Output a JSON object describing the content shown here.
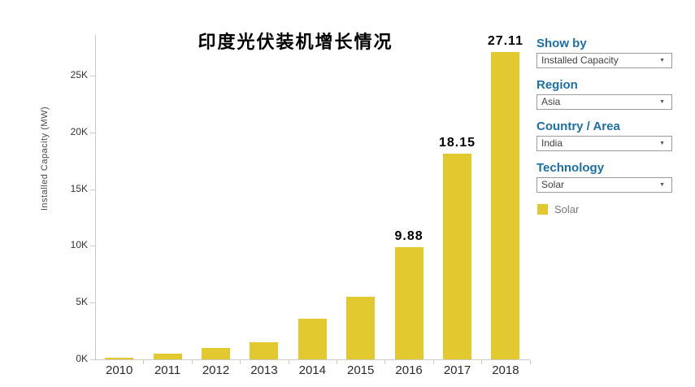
{
  "title": "印度光伏装机增长情况",
  "chart_data": {
    "type": "bar",
    "title": "印度光伏装机增长情况",
    "categories": [
      "2010",
      "2011",
      "2012",
      "2013",
      "2014",
      "2015",
      "2016",
      "2017",
      "2018"
    ],
    "values": [
      0.06,
      0.5,
      1.0,
      1.5,
      3.6,
      5.5,
      9.88,
      18.15,
      27.11
    ],
    "value_labels": [
      "",
      "",
      "",
      "",
      "",
      "",
      "9.88",
      "18.15",
      "27.11"
    ],
    "unit": "thousand MW (K)",
    "xlabel": "",
    "ylabel": "Installed Capacity (MW)",
    "ytick_labels": [
      "0K",
      "5K",
      "10K",
      "15K",
      "20K",
      "25K"
    ],
    "ytick_values": [
      0,
      5,
      10,
      15,
      20,
      25
    ],
    "ylim": [
      0,
      28.5
    ],
    "grid": false,
    "bar_color": "#e2c92f",
    "legend": {
      "position": "right",
      "entries": [
        {
          "label": "Solar",
          "color": "#e2c92f"
        }
      ]
    }
  },
  "filters": [
    {
      "label": "Show by",
      "value": "Installed Capacity"
    },
    {
      "label": "Region",
      "value": "Asia"
    },
    {
      "label": "Country / Area",
      "value": "India"
    },
    {
      "label": "Technology",
      "value": "Solar"
    }
  ],
  "legend": {
    "label": "Solar"
  },
  "icons": {
    "dropdown_caret": "▼"
  },
  "colors": {
    "bar": "#e2c92f",
    "filter_heading": "#1d6fa5",
    "axis_line": "#cbcbcb",
    "tick_label": "#333333",
    "legend_text": "#7a7a7a",
    "background": "#ffffff"
  }
}
